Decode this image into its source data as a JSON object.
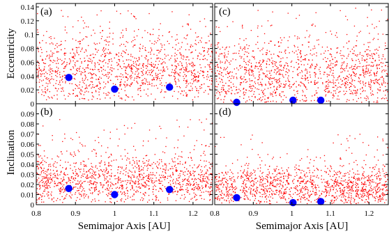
{
  "chart_data": {
    "type": "scatter",
    "layout": "2x2 panels sharing axes",
    "colors": {
      "simulated_bodies": "#ff0000",
      "planets": "#0000ff",
      "axes": "#000000"
    },
    "xlabel": "Semimajor Axis [AU]",
    "xlim": [
      0.8,
      1.25
    ],
    "x_ticks": [
      "0.8",
      "0.9",
      "1",
      "1.1",
      "1.2"
    ],
    "rows": [
      {
        "ylabel": "Eccentricity",
        "ylim": [
          0,
          0.145
        ],
        "y_ticks": [
          "0",
          "0.02",
          "0.04",
          "0.06",
          "0.08",
          "0.1",
          "0.12",
          "0.14"
        ]
      },
      {
        "ylabel": "Inclination",
        "ylim": [
          0,
          0.1
        ],
        "y_ticks": [
          "0",
          "0.01",
          "0.02",
          "0.03",
          "0.04",
          "0.05",
          "0.06",
          "0.07",
          "0.08",
          "0.09"
        ]
      }
    ],
    "panels": [
      {
        "label": "(a)",
        "row": 0,
        "col": 0,
        "show_y_ticklabels": true,
        "show_x_ticklabels": false,
        "cloud": {
          "gaps": [
            0.883,
            1.0,
            1.14
          ],
          "center": 0.048,
          "spread": 0.028,
          "ymin": 0.005,
          "ymax": 0.135
        },
        "planets": [
          {
            "x": 0.883,
            "y": 0.038
          },
          {
            "x": 1.0,
            "y": 0.021
          },
          {
            "x": 1.14,
            "y": 0.024
          }
        ]
      },
      {
        "label": "(c)",
        "row": 0,
        "col": 1,
        "show_y_ticklabels": false,
        "show_x_ticklabels": false,
        "cloud": {
          "gaps": [
            0.857,
            1.003,
            1.075
          ],
          "center": 0.04,
          "spread": 0.028,
          "ymin": 0.002,
          "ymax": 0.14
        },
        "planets": [
          {
            "x": 0.857,
            "y": 0.002
          },
          {
            "x": 1.003,
            "y": 0.005
          },
          {
            "x": 1.075,
            "y": 0.005
          }
        ]
      },
      {
        "label": "(b)",
        "row": 1,
        "col": 0,
        "show_y_ticklabels": true,
        "show_x_ticklabels": true,
        "cloud": {
          "gaps": [
            0.883,
            1.0,
            1.14
          ],
          "center": 0.024,
          "spread": 0.013,
          "ymin": 0.002,
          "ymax": 0.085
        },
        "planets": [
          {
            "x": 0.883,
            "y": 0.016
          },
          {
            "x": 1.0,
            "y": 0.01
          },
          {
            "x": 1.14,
            "y": 0.015
          }
        ]
      },
      {
        "label": "(d)",
        "row": 1,
        "col": 1,
        "show_y_ticklabels": false,
        "show_x_ticklabels": true,
        "cloud": {
          "gaps": [
            0.857,
            1.003,
            1.075
          ],
          "center": 0.017,
          "spread": 0.011,
          "ymin": 0.001,
          "ymax": 0.07
        },
        "planets": [
          {
            "x": 0.857,
            "y": 0.007
          },
          {
            "x": 1.003,
            "y": 0.002
          },
          {
            "x": 1.075,
            "y": 0.003
          }
        ]
      }
    ]
  }
}
